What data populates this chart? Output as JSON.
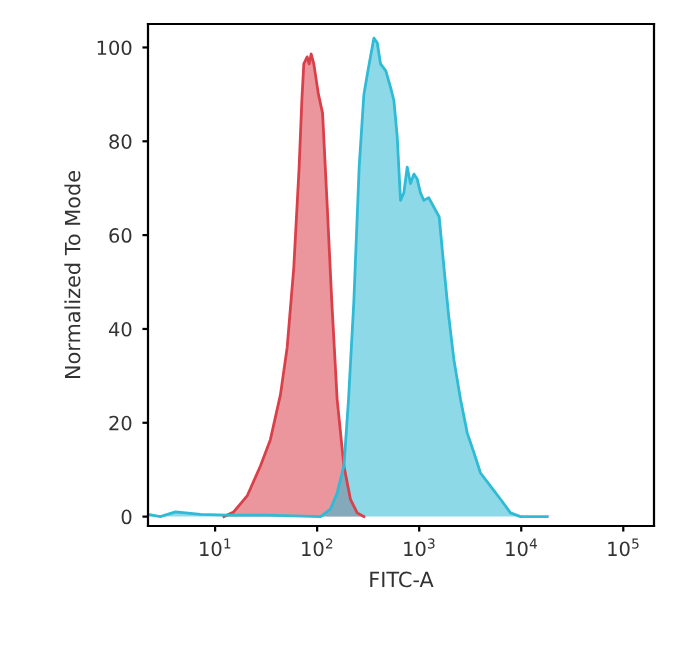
{
  "chart_data": {
    "type": "area",
    "xlabel": "FITC-A",
    "ylabel": "Normalized To Mode",
    "log": "x",
    "xlim": [
      2.2,
      200000
    ],
    "ylim": [
      -2,
      105
    ],
    "xticks": [
      {
        "value": 10,
        "label": "10$^{1}$"
      },
      {
        "value": 100,
        "label": "10$^{2}$"
      },
      {
        "value": 1000,
        "label": "10$^{3}$"
      },
      {
        "value": 10000,
        "label": "10$^{4}$"
      },
      {
        "value": 100000,
        "label": "10$^{5}$"
      }
    ],
    "yticks": [
      0,
      20,
      40,
      60,
      80,
      100
    ],
    "grid": false,
    "series": [
      {
        "color": "#d9404a",
        "x": [
          12.2,
          15.2,
          20.6,
          27.8,
          34.8,
          43.7,
          50.8,
          59.0,
          66.6,
          70.8,
          74.0,
          79.8,
          83.5,
          87.4,
          92.7,
          103,
          113,
          125,
          139,
          157,
          183,
          212,
          247,
          287
        ],
        "values": [
          0,
          1,
          4.4,
          10.8,
          16.4,
          26,
          36,
          53,
          74.5,
          88.7,
          96.5,
          98,
          96.5,
          98.6,
          96.5,
          90,
          86,
          67,
          46,
          25,
          10.8,
          3.7,
          0.8,
          0
        ]
      },
      {
        "color": "#2fbad6",
        "x": [
          2.2,
          2.9,
          4.1,
          7.2,
          13.1,
          32.4,
          108,
          135,
          157,
          183,
          203,
          229,
          258,
          287,
          319,
          360,
          388,
          418,
          471,
          524,
          565,
          609,
          656,
          707,
          763,
          822,
          887,
          955,
          1030,
          1110,
          1240,
          1390,
          1570,
          1750,
          1940,
          2190,
          2540,
          2960,
          3440,
          3990,
          5000,
          6270,
          7850,
          9840,
          18000
        ],
        "values": [
          0.5,
          0,
          1,
          0.5,
          0.3,
          0.3,
          0,
          1.6,
          5,
          10.8,
          25,
          46,
          74.5,
          90,
          95.8,
          102,
          101,
          96.5,
          95,
          91.5,
          88.7,
          81,
          67.4,
          69,
          74.5,
          71,
          73,
          72,
          69,
          67.4,
          68,
          66,
          63.9,
          53,
          43,
          33.4,
          25,
          17.8,
          13.6,
          9.3,
          6.5,
          3.7,
          0.8,
          0,
          0
        ]
      }
    ]
  }
}
